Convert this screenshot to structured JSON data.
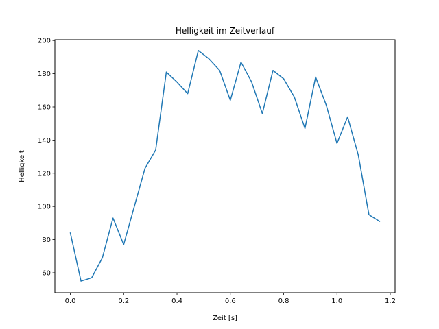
{
  "chart_data": {
    "type": "line",
    "title": "Helligkeit im Zeitverlauf",
    "xlabel": "Zeit [s]",
    "ylabel": "Helligkeit",
    "xlim": [
      -0.058,
      1.218
    ],
    "ylim": [
      48,
      200.5
    ],
    "xticks": [
      0.0,
      0.2,
      0.4,
      0.6,
      0.8,
      1.0,
      1.2
    ],
    "xtick_labels": [
      "0.0",
      "0.2",
      "0.4",
      "0.6",
      "0.8",
      "1.0",
      "1.2"
    ],
    "yticks": [
      60,
      80,
      100,
      120,
      140,
      160,
      180,
      200
    ],
    "ytick_labels": [
      "60",
      "80",
      "100",
      "120",
      "140",
      "160",
      "180",
      "200"
    ],
    "grid": false,
    "series": [
      {
        "color": "#1f77b4",
        "x": [
          0.0,
          0.04,
          0.08,
          0.12,
          0.16,
          0.2,
          0.24,
          0.28,
          0.32,
          0.36,
          0.4,
          0.44,
          0.48,
          0.52,
          0.56,
          0.6,
          0.64,
          0.68,
          0.72,
          0.76,
          0.8,
          0.84,
          0.88,
          0.92,
          0.96,
          1.0,
          1.04,
          1.08,
          1.12,
          1.16
        ],
        "y": [
          84,
          55,
          57,
          69,
          93,
          77,
          100,
          123,
          134,
          181,
          175,
          168,
          194,
          189,
          182,
          164,
          187,
          175,
          156,
          182,
          177,
          166,
          147,
          178,
          161,
          138,
          154,
          131,
          95,
          91
        ]
      }
    ]
  }
}
